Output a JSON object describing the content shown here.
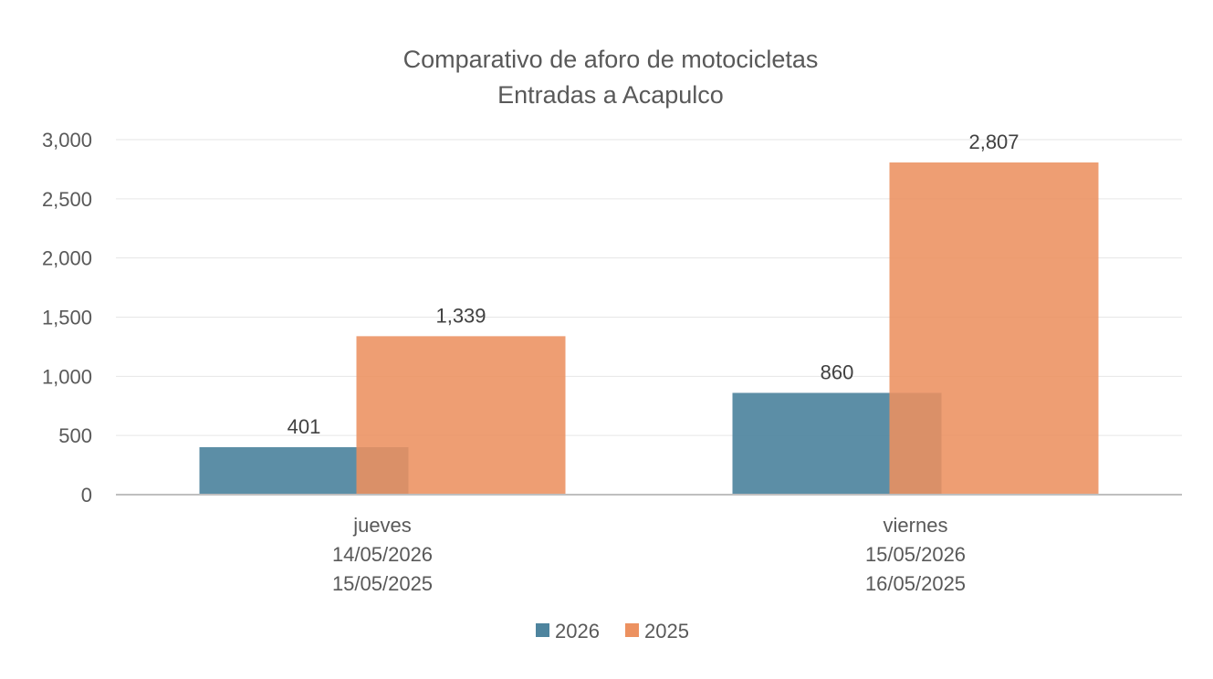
{
  "chart_data": {
    "type": "bar",
    "title": "Comparativo de aforo de motocicletas",
    "subtitle": "Entradas a Acapulco",
    "xlabel": "",
    "ylabel": "",
    "ylim": [
      0,
      3000
    ],
    "yticks": [
      "0",
      "500",
      "1,000",
      "1,500",
      "2,000",
      "2,500",
      "3,000"
    ],
    "ytick_values": [
      0,
      500,
      1000,
      1500,
      2000,
      2500,
      3000
    ],
    "grid": true,
    "legend_position": "bottom",
    "categories": [
      {
        "lines": [
          "jueves",
          "14/05/2026",
          "15/05/2025"
        ]
      },
      {
        "lines": [
          "viernes",
          "15/05/2026",
          "16/05/2025"
        ]
      }
    ],
    "series": [
      {
        "name": "2026",
        "color": "#4E849E",
        "values": [
          401,
          860
        ],
        "labels": [
          "401",
          "860"
        ]
      },
      {
        "name": "2025",
        "color": "#EC9160",
        "values": [
          1339,
          2807
        ],
        "labels": [
          "1,339",
          "2,807"
        ]
      }
    ],
    "bar_overlap": true
  }
}
